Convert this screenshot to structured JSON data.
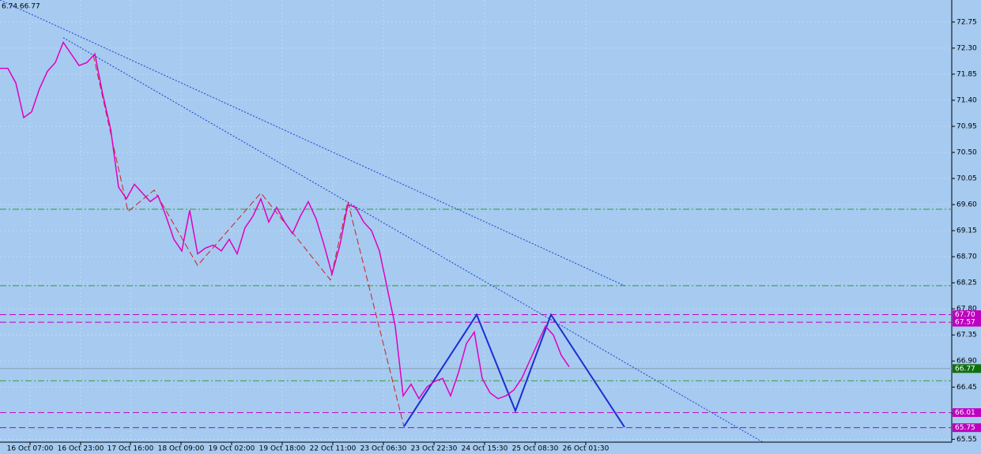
{
  "chart_data": {
    "type": "line",
    "title": "6.74 66.77",
    "xlim": [
      0,
      120.4
    ],
    "ylim": [
      65.5,
      73.13
    ],
    "xticks": [
      {
        "value": 3.8,
        "label": "16 Oct 07:00"
      },
      {
        "value": 10.2,
        "label": "16 Oct 23:00"
      },
      {
        "value": 16.5,
        "label": "17 Oct 16:00"
      },
      {
        "value": 22.9,
        "label": "18 Oct 09:00"
      },
      {
        "value": 29.3,
        "label": "19 Oct 02:00"
      },
      {
        "value": 35.7,
        "label": "19 Oct 18:00"
      },
      {
        "value": 42.1,
        "label": "22 Oct 11:00"
      },
      {
        "value": 48.5,
        "label": "23 Oct 06:30"
      },
      {
        "value": 54.9,
        "label": "23 Oct 22:30"
      },
      {
        "value": 61.3,
        "label": "24 Oct 15:30"
      },
      {
        "value": 67.7,
        "label": "25 Oct 08:30"
      },
      {
        "value": 74.1,
        "label": "26 Oct 01:30"
      }
    ],
    "yticks": [
      72.75,
      {
        "value": 72.3,
        "label": "72.30"
      },
      71.85,
      {
        "value": 71.4,
        "label": "71.40"
      },
      70.95,
      {
        "value": 70.5,
        "label": "70.50"
      },
      70.05,
      {
        "value": 69.6,
        "label": "69.60"
      },
      69.15,
      {
        "value": 68.7,
        "label": "68.70"
      },
      68.25,
      {
        "value": 67.8,
        "label": "67.80"
      },
      67.35,
      {
        "value": 66.9,
        "label": "66.90"
      },
      66.45,
      {
        "value": 66.0,
        "label": "66.00"
      },
      65.55
    ],
    "grid": true,
    "x": [
      0,
      1,
      2,
      3,
      4,
      5,
      6,
      7,
      8,
      9,
      10,
      11,
      12,
      13,
      14,
      15,
      16,
      17,
      18,
      19,
      20,
      21,
      22,
      23,
      24,
      25,
      26,
      27,
      28,
      29,
      30,
      31,
      32,
      33,
      34,
      35,
      36,
      37,
      38,
      39,
      40,
      41,
      42,
      43,
      44,
      45,
      46,
      47,
      48,
      49,
      50,
      51,
      52,
      53,
      54,
      55,
      56,
      57,
      58,
      59,
      60,
      61,
      62,
      63,
      64,
      65,
      66,
      67,
      68,
      69,
      70,
      71,
      72
    ],
    "series": [
      {
        "name": "price",
        "color": "#e000c0",
        "values": [
          71.95,
          71.95,
          71.7,
          71.1,
          71.2,
          71.6,
          71.9,
          72.05,
          72.4,
          72.2,
          72.0,
          72.05,
          72.2,
          71.5,
          70.9,
          69.9,
          69.7,
          69.95,
          69.8,
          69.65,
          69.75,
          69.4,
          69.0,
          68.8,
          69.5,
          68.75,
          68.85,
          68.9,
          68.8,
          69.0,
          68.75,
          69.2,
          69.4,
          69.7,
          69.3,
          69.55,
          69.3,
          69.1,
          69.4,
          69.65,
          69.35,
          68.9,
          68.4,
          68.9,
          69.6,
          69.55,
          69.3,
          69.15,
          68.8,
          68.15,
          67.5,
          66.3,
          66.5,
          66.25,
          66.45,
          66.55,
          66.6,
          66.3,
          66.7,
          67.2,
          67.4,
          66.6,
          66.35,
          66.25,
          66.3,
          66.4,
          66.6,
          66.9,
          67.2,
          67.5,
          67.35,
          67.0,
          66.8
        ]
      }
    ],
    "trendlines": [
      {
        "color": "#1a3fd0",
        "style": "dotted",
        "x": [
          0,
          79
        ],
        "y": [
          73.13,
          68.2
        ]
      },
      {
        "color": "#1a3fd0",
        "style": "dotted",
        "x": [
          8,
          96.5
        ],
        "y": [
          72.48,
          65.5
        ]
      },
      {
        "color": "#d02020",
        "style": "dashed",
        "x": [
          11.8,
          16.2,
          19.5,
          25,
          33,
          41.8,
          44,
          51.1
        ],
        "y": [
          72.18,
          69.48,
          69.85,
          68.55,
          69.8,
          68.3,
          69.65,
          65.77
        ]
      },
      {
        "color": "#1a2fd0",
        "style": "solid",
        "x": [
          51.1,
          60.3,
          65.2,
          69.7,
          79
        ],
        "y": [
          65.77,
          67.7,
          66.04,
          67.7,
          65.76
        ]
      }
    ],
    "levels": [
      {
        "value": 67.7,
        "label": "67.70",
        "color": "#c000c0",
        "style": "dashed"
      },
      {
        "value": 67.57,
        "label": "67.57",
        "color": "#c000c0",
        "style": "dashed"
      },
      {
        "value": 66.01,
        "label": "66.01",
        "color": "#c000c0",
        "style": "dashed"
      },
      {
        "value": 65.75,
        "label": "65.75",
        "color": "#c000c0",
        "style": "dashed"
      },
      {
        "value": 69.52,
        "color": "#30a030",
        "style": "dashdot"
      },
      {
        "value": 68.2,
        "color": "#30a030",
        "style": "dashdot"
      },
      {
        "value": 66.56,
        "color": "#30a030",
        "style": "dashdot"
      },
      {
        "value": 66.77,
        "label": "66.77",
        "color": "#107010",
        "style": "current"
      }
    ]
  }
}
